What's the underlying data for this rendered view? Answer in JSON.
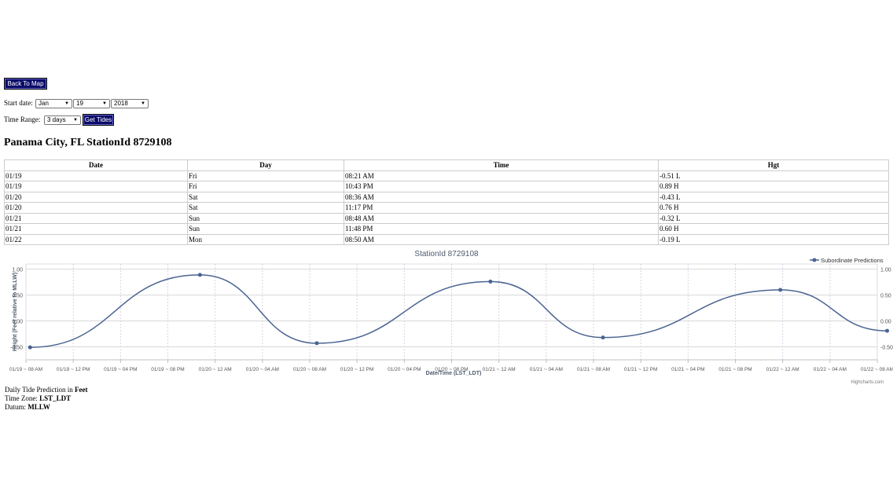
{
  "controls": {
    "back_label": "Back To Map",
    "start_label": "Start date:",
    "month": "Jan",
    "day": "19",
    "year": "2018",
    "range_label": "Time Range:",
    "range": "3 days",
    "get_label": "Get Tides"
  },
  "station_title": "Panama City, FL StationId 8729108",
  "table": {
    "headers": [
      "Date",
      "Day",
      "Time",
      "Hgt"
    ],
    "rows": [
      [
        "01/19",
        "Fri",
        "08:21 AM",
        "-0.51 L"
      ],
      [
        "01/19",
        "Fri",
        "10:43 PM",
        "0.89 H"
      ],
      [
        "01/20",
        "Sat",
        "08:36 AM",
        "-0.43 L"
      ],
      [
        "01/20",
        "Sat",
        "11:17 PM",
        "0.76 H"
      ],
      [
        "01/21",
        "Sun",
        "08:48 AM",
        "-0.32 L"
      ],
      [
        "01/21",
        "Sun",
        "11:48 PM",
        "0.60 H"
      ],
      [
        "01/22",
        "Mon",
        "08:50 AM",
        "-0.19 L"
      ]
    ]
  },
  "chart_data": {
    "type": "line",
    "title": "StationId 8729108",
    "xlabel": "Date/Time (LST_LDT)",
    "ylabel": "Height (Feet relative to MLLW)",
    "series": [
      {
        "name": "Subordinate Predictions",
        "color": "#4a6491",
        "points": [
          {
            "x": "01/19 08:21 AM",
            "y": -0.51
          },
          {
            "x": "01/19 10:43 PM",
            "y": 0.89
          },
          {
            "x": "01/20 08:36 AM",
            "y": -0.43
          },
          {
            "x": "01/20 11:17 PM",
            "y": 0.76
          },
          {
            "x": "01/21 08:48 AM",
            "y": -0.32
          },
          {
            "x": "01/21 11:48 PM",
            "y": 0.6
          },
          {
            "x": "01/22 08:50 AM",
            "y": -0.19
          }
        ]
      }
    ],
    "x_ticks": [
      "01/19 ~ 08 AM",
      "01/19 ~ 12 PM",
      "01/19 ~ 04 PM",
      "01/19 ~ 08 PM",
      "01/20 ~ 12 AM",
      "01/20 ~ 04 AM",
      "01/20 ~ 08 AM",
      "01/20 ~ 12 PM",
      "01/20 ~ 04 PM",
      "01/20 ~ 08 PM",
      "01/21 ~ 12 AM",
      "01/21 ~ 04 AM",
      "01/21 ~ 08 AM",
      "01/21 ~ 12 PM",
      "01/21 ~ 04 PM",
      "01/21 ~ 08 PM",
      "01/22 ~ 12 AM",
      "01/22 ~ 04 AM",
      "01/22 ~ 08 AM"
    ],
    "y_ticks": [
      "1.00",
      "0.50",
      "0.00",
      "-0.50"
    ],
    "ylim": [
      -0.75,
      1.1
    ],
    "legend": "top-right",
    "grid": true,
    "credit": "Highcharts.com"
  },
  "footer": {
    "line1_prefix": "Daily Tide Prediction in ",
    "line1_bold": "Feet",
    "line2_prefix": "Time Zone: ",
    "line2_bold": "LST_LDT",
    "line3_prefix": "Datum: ",
    "line3_bold": "MLLW"
  }
}
